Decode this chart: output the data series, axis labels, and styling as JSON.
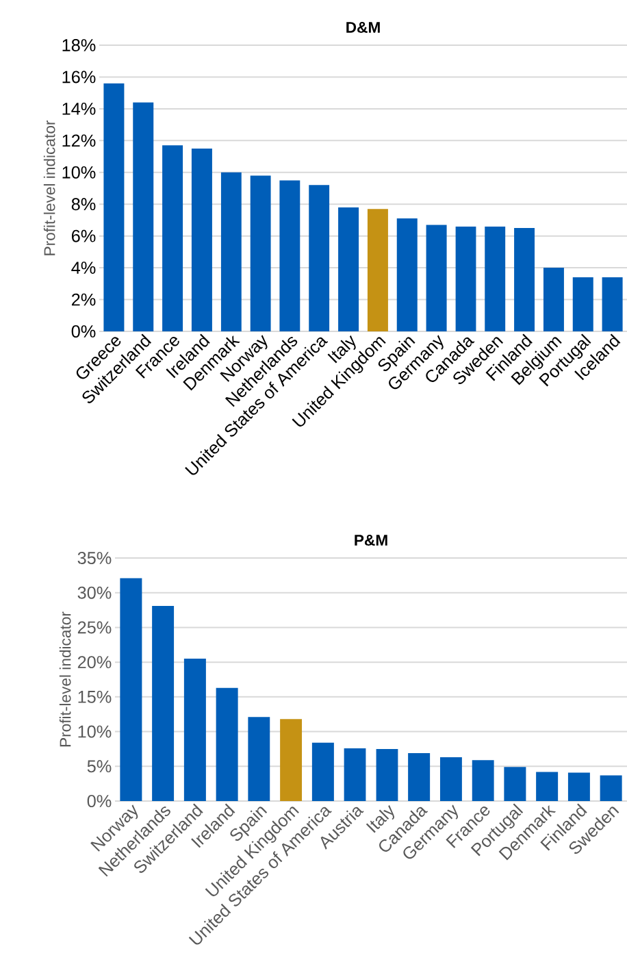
{
  "chart_data": [
    {
      "type": "bar",
      "title": "D&M",
      "ylabel": "Profit-level indicator",
      "categories": [
        "Greece",
        "Switzerland",
        "France",
        "Ireland",
        "Denmark",
        "Norway",
        "Netherlands",
        "United States of America",
        "Italy",
        "United Kingdom",
        "Spain",
        "Germany",
        "Canada",
        "Sweden",
        "Finland",
        "Belgium",
        "Portugal",
        "Iceland"
      ],
      "values": [
        15.6,
        14.4,
        11.7,
        11.5,
        10.0,
        9.8,
        9.5,
        9.2,
        7.8,
        7.7,
        7.1,
        6.7,
        6.6,
        6.6,
        6.5,
        4.0,
        3.4,
        3.4
      ],
      "colors": [
        "#005eb8",
        "#005eb8",
        "#005eb8",
        "#005eb8",
        "#005eb8",
        "#005eb8",
        "#005eb8",
        "#005eb8",
        "#005eb8",
        "#c59214",
        "#005eb8",
        "#005eb8",
        "#005eb8",
        "#005eb8",
        "#005eb8",
        "#005eb8",
        "#005eb8",
        "#005eb8"
      ],
      "ylim": [
        0,
        18
      ],
      "yticks": [
        {
          "value": 0,
          "label": "0%"
        },
        {
          "value": 2,
          "label": "2%"
        },
        {
          "value": 4,
          "label": "4%"
        },
        {
          "value": 6,
          "label": "6%"
        },
        {
          "value": 8,
          "label": "8%"
        },
        {
          "value": 10,
          "label": "10%"
        },
        {
          "value": 12,
          "label": "12%"
        },
        {
          "value": 14,
          "label": "14%"
        },
        {
          "value": 16,
          "label": "16%"
        },
        {
          "value": 18,
          "label": "18%"
        }
      ],
      "grid": "y"
    },
    {
      "type": "bar",
      "title": "P&M",
      "ylabel": "Profit-level indicator",
      "categories": [
        "Norway",
        "Netherlands",
        "Switzerland",
        "Ireland",
        "Spain",
        "United Kingdom",
        "United States of America",
        "Austria",
        "Italy",
        "Canada",
        "Germany",
        "France",
        "Portugal",
        "Denmark",
        "Finland",
        "Sweden"
      ],
      "values": [
        32.1,
        28.1,
        20.5,
        16.3,
        12.1,
        11.8,
        8.4,
        7.6,
        7.5,
        6.9,
        6.3,
        5.9,
        4.9,
        4.2,
        4.1,
        3.7
      ],
      "colors": [
        "#005eb8",
        "#005eb8",
        "#005eb8",
        "#005eb8",
        "#005eb8",
        "#c59214",
        "#005eb8",
        "#005eb8",
        "#005eb8",
        "#005eb8",
        "#005eb8",
        "#005eb8",
        "#005eb8",
        "#005eb8",
        "#005eb8",
        "#005eb8"
      ],
      "ylim": [
        0,
        35
      ],
      "yticks": [
        {
          "value": 0,
          "label": "0%"
        },
        {
          "value": 5,
          "label": "5%"
        },
        {
          "value": 10,
          "label": "10%"
        },
        {
          "value": 15,
          "label": "15%"
        },
        {
          "value": 20,
          "label": "20%"
        },
        {
          "value": 25,
          "label": "25%"
        },
        {
          "value": 30,
          "label": "30%"
        },
        {
          "value": 35,
          "label": "35%"
        }
      ],
      "grid": "y"
    }
  ]
}
